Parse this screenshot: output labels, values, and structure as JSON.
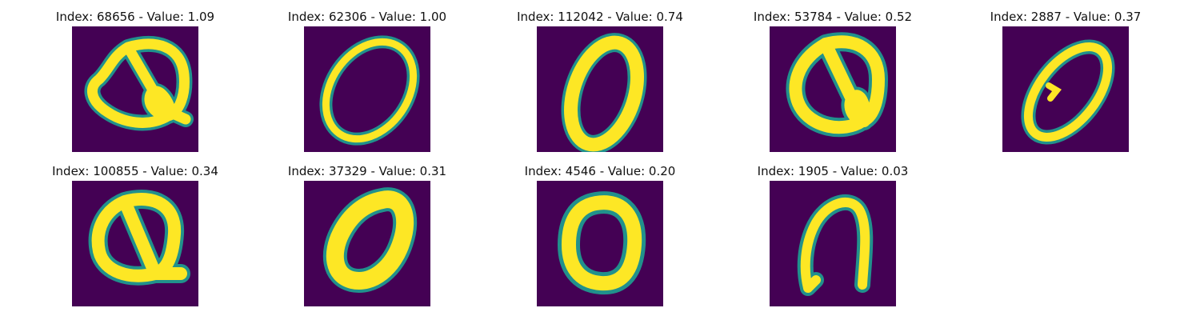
{
  "colors": {
    "background": "#440154",
    "edge": "#21918c",
    "stroke": "#fde725"
  },
  "panels": [
    {
      "title": "Index: 68656 - Value: 1.09",
      "digit": "q-shape-1"
    },
    {
      "title": "Index: 62306 - Value: 1.00",
      "digit": "oval-tilted"
    },
    {
      "title": "Index: 112042 - Value: 0.74",
      "digit": "oval-upright"
    },
    {
      "title": "Index: 53784 - Value: 0.52",
      "digit": "q-shape-2"
    },
    {
      "title": "Index: 2887 - Value: 0.37",
      "digit": "oval-slanted"
    },
    {
      "title": "Index: 100855 - Value: 0.34",
      "digit": "q-shape-3"
    },
    {
      "title": "Index: 37329 - Value: 0.31",
      "digit": "oval-thick"
    },
    {
      "title": "Index: 4546 - Value: 0.20",
      "digit": "oval-round"
    },
    {
      "title": "Index: 1905 - Value: 0.03",
      "digit": "arch-shape"
    }
  ]
}
